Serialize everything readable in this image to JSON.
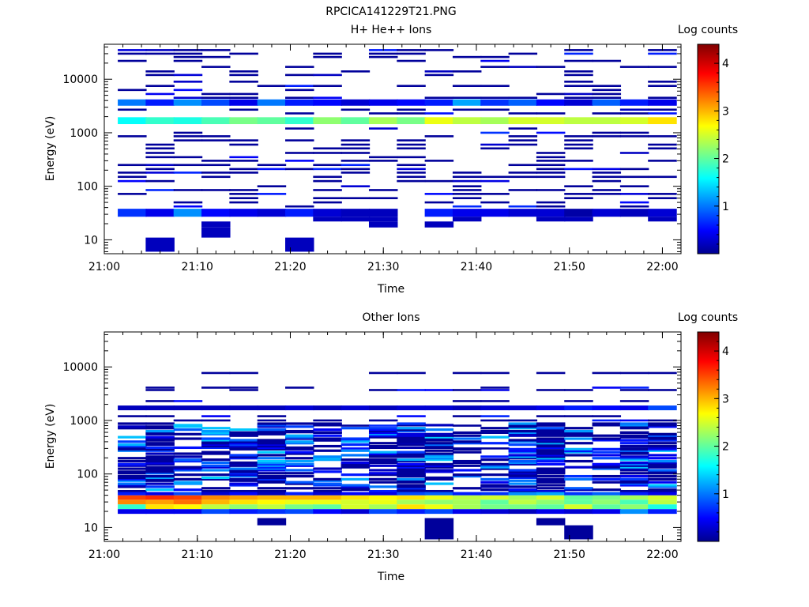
{
  "figure_title": "RPCICA141229T21.PNG",
  "colorbar_label": "Log counts",
  "colorbar_ticks": [
    "1",
    "2",
    "3",
    "4"
  ],
  "x_ticks": [
    "21:00",
    "21:10",
    "21:20",
    "21:30",
    "21:40",
    "21:50",
    "22:00"
  ],
  "y_ticks": [
    "10",
    "100",
    "1000",
    "10000"
  ],
  "chart_data": [
    {
      "type": "heatmap",
      "title": "H+ He++ Ions",
      "xlabel": "Time",
      "ylabel": "Energy (eV)",
      "x_range": [
        "21:00",
        "22:02"
      ],
      "y_scale": "log",
      "ylim": [
        5.5,
        45000
      ],
      "colorbar": {
        "label": "Log counts",
        "range": [
          0,
          4.4
        ]
      },
      "time_bins": [
        "21:03",
        "21:06",
        "21:09",
        "21:12",
        "21:15",
        "21:18",
        "21:21",
        "21:24",
        "21:27",
        "21:30",
        "21:33",
        "21:36",
        "21:39",
        "21:42",
        "21:45",
        "21:48",
        "21:51",
        "21:54",
        "21:57",
        "22:00"
      ],
      "bands": [
        {
          "e_low": 1450,
          "e_high": 1950,
          "log_counts": [
            1.6,
            1.8,
            1.7,
            1.9,
            2.1,
            2.0,
            1.8,
            2.2,
            2.0,
            2.3,
            2.1,
            2.6,
            2.4,
            2.3,
            2.5,
            2.5,
            2.4,
            2.4,
            2.5,
            2.8
          ]
        },
        {
          "e_low": 3200,
          "e_high": 4200,
          "log_counts": [
            1.0,
            0.6,
            1.1,
            0.8,
            0.4,
            1.0,
            0.6,
            0.5,
            0.3,
            0.4,
            0.5,
            0.6,
            1.2,
            0.7,
            0.9,
            0.5,
            0.3,
            0.9,
            0.6,
            0.4
          ]
        },
        {
          "e_low": 27,
          "e_high": 38,
          "log_counts": [
            0.7,
            0.4,
            1.1,
            0.5,
            0.4,
            0.3,
            0.6,
            0.3,
            0.2,
            0.2,
            0.0,
            0.6,
            0.4,
            0.4,
            0.3,
            0.3,
            0.1,
            0.3,
            0.2,
            0.3
          ]
        },
        {
          "e_low": 22,
          "e_high": 27,
          "log_counts": [
            0.0,
            0.0,
            0.0,
            0.0,
            0.0,
            0.0,
            0.0,
            0.2,
            0.2,
            0.2,
            0.0,
            0.0,
            0.2,
            0.0,
            0.0,
            0.2,
            0.2,
            0.0,
            0.0,
            0.2
          ]
        },
        {
          "e_low": 17,
          "e_high": 22,
          "log_counts": [
            0.0,
            0.0,
            0.0,
            0.2,
            0.0,
            0.0,
            0.0,
            0.0,
            0.0,
            0.2,
            0.0,
            0.2,
            0.0,
            0.0,
            0.0,
            0.0,
            0.0,
            0.0,
            0.0,
            0.0
          ]
        },
        {
          "e_low": 11,
          "e_high": 17,
          "log_counts": [
            0.0,
            0.0,
            0.0,
            0.2,
            0.0,
            0.0,
            0.0,
            0.0,
            0.0,
            0.0,
            0.0,
            0.0,
            0.0,
            0.0,
            0.0,
            0.0,
            0.0,
            0.0,
            0.0,
            0.0
          ]
        },
        {
          "e_low": 6,
          "e_high": 11,
          "log_counts": [
            0.0,
            0.2,
            0.0,
            0.0,
            0.0,
            0.0,
            0.2,
            0.0,
            0.0,
            0.0,
            0.0,
            0.0,
            0.0,
            0.0,
            0.0,
            0.0,
            0.0,
            0.0,
            0.0,
            0.0
          ]
        }
      ],
      "sparse_energies_ev": [
        35000,
        30000,
        26000,
        22000,
        17000,
        14000,
        12000,
        9000,
        7500,
        6300,
        5300,
        4500,
        2700,
        2300,
        1200,
        1000,
        860,
        720,
        600,
        510,
        420,
        350,
        300,
        250,
        210,
        180,
        150,
        125,
        100,
        85,
        72,
        60,
        50,
        42
      ]
    },
    {
      "type": "heatmap",
      "title": "Other Ions",
      "xlabel": "Time",
      "ylabel": "Energy (eV)",
      "x_range": [
        "21:00",
        "22:02"
      ],
      "y_scale": "log",
      "ylim": [
        5.5,
        45000
      ],
      "colorbar": {
        "label": "Log counts",
        "range": [
          0,
          4.4
        ]
      },
      "time_bins": [
        "21:03",
        "21:06",
        "21:09",
        "21:12",
        "21:15",
        "21:18",
        "21:21",
        "21:24",
        "21:27",
        "21:30",
        "21:33",
        "21:36",
        "21:39",
        "21:42",
        "21:45",
        "21:48",
        "21:51",
        "21:54",
        "21:57",
        "22:00"
      ],
      "bands": [
        {
          "e_low": 33,
          "e_high": 40,
          "log_counts": [
            3.5,
            3.6,
            3.5,
            3.2,
            3.1,
            3.0,
            3.0,
            3.0,
            2.8,
            2.7,
            2.8,
            2.6,
            2.4,
            2.5,
            2.3,
            2.5,
            2.0,
            2.1,
            2.3,
            2.5
          ]
        },
        {
          "e_low": 27,
          "e_high": 33,
          "log_counts": [
            3.2,
            3.1,
            3.3,
            3.0,
            2.8,
            2.7,
            2.6,
            2.6,
            2.5,
            2.6,
            2.3,
            2.2,
            2.3,
            2.0,
            2.4,
            2.2,
            2.0,
            2.2,
            1.9,
            2.4
          ]
        },
        {
          "e_low": 22,
          "e_high": 27,
          "log_counts": [
            1.8,
            2.8,
            2.7,
            2.4,
            2.2,
            2.4,
            2.1,
            2.0,
            2.5,
            2.3,
            2.8,
            2.6,
            2.3,
            2.1,
            2.1,
            2.0,
            2.5,
            2.0,
            2.2,
            1.7
          ]
        },
        {
          "e_low": 18,
          "e_high": 22,
          "log_counts": [
            0.4,
            0.4,
            0.4,
            0.8,
            0.6,
            0.7,
            0.8,
            0.5,
            0.3,
            0.8,
            0.6,
            0.8,
            0.4,
            0.3,
            0.2,
            0.4,
            0.3,
            0.4,
            1.1,
            0.6
          ]
        },
        {
          "e_low": 40,
          "e_high": 46,
          "log_counts": [
            0.6,
            0.4,
            0.8,
            0.3,
            0.5,
            0.2,
            0.6,
            0.3,
            0.5,
            0.4,
            0.8,
            0.9,
            0.6,
            0.7,
            1.1,
            1.2,
            0.7,
            0.9,
            0.6,
            0.4
          ]
        },
        {
          "e_low": 1550,
          "e_high": 1900,
          "log_counts": [
            0.2,
            0.2,
            0.2,
            0.2,
            0.2,
            0.2,
            0.3,
            0.2,
            0.3,
            0.2,
            0.3,
            0.3,
            0.2,
            0.3,
            0.3,
            0.4,
            0.6,
            0.5,
            0.4,
            0.8
          ]
        }
      ],
      "scatter_range_ev": [
        46,
        900
      ],
      "sparse_energies_ev": [
        7700,
        4100,
        3700,
        2300,
        1200,
        1000,
        800,
        600,
        420,
        300
      ],
      "low_blocks": [
        {
          "time": "21:18",
          "e_low": 11,
          "e_high": 15
        },
        {
          "time": "21:36",
          "e_low": 6,
          "e_high": 15
        },
        {
          "time": "21:48",
          "e_low": 11,
          "e_high": 15
        },
        {
          "time": "21:51",
          "e_low": 6,
          "e_high": 11
        }
      ]
    }
  ]
}
